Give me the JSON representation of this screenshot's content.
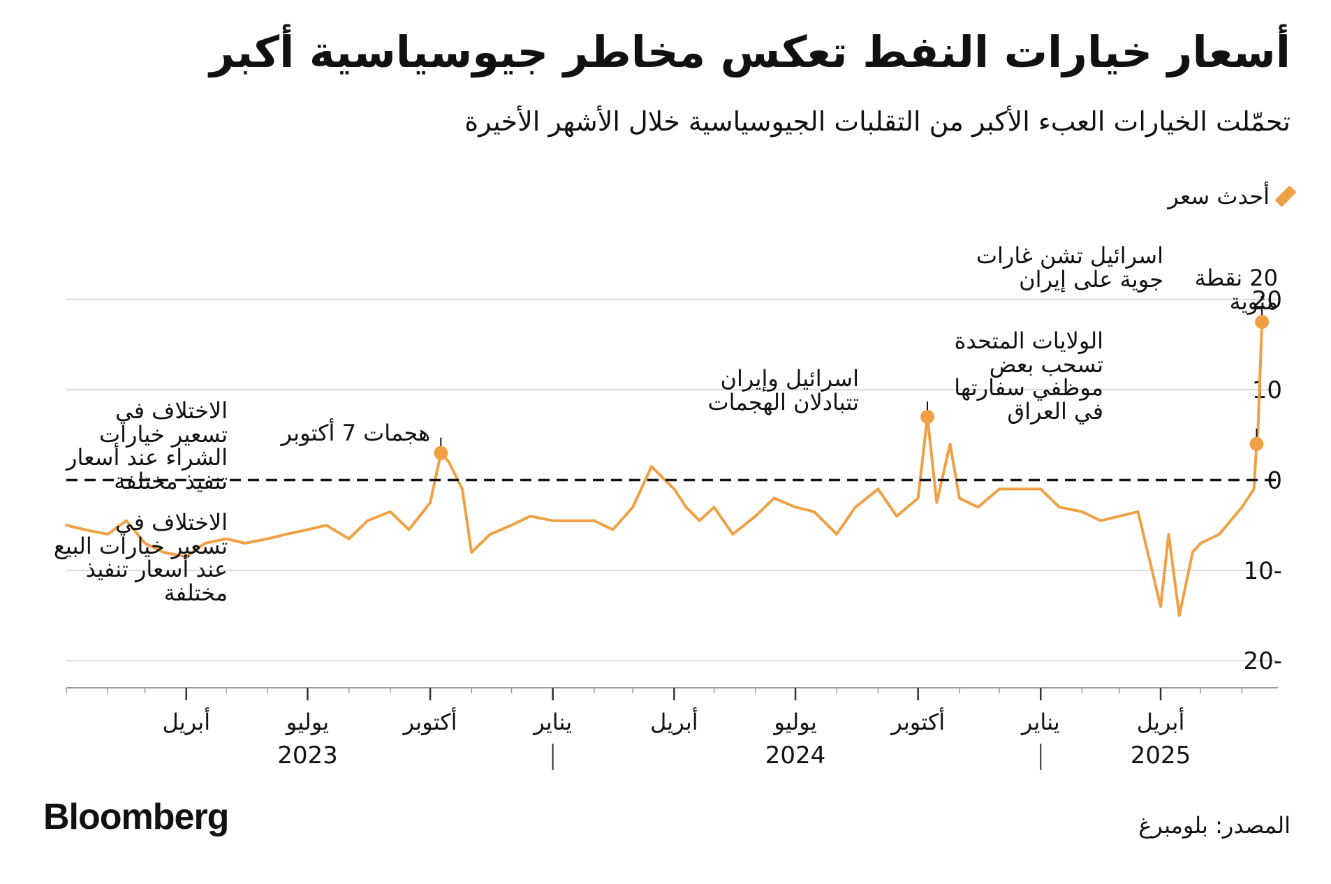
{
  "title": "أسعار خيارات النفط تعكس مخاطر جيوسياسية أكبر",
  "subtitle": "تحمّلت الخيارات العبء الأكبر من التقلبات الجيوسياسية خلال الأشهر الأخيرة",
  "legend": {
    "label": "أحدث سعر",
    "color": "#f0a044"
  },
  "source": "المصدر: بلومبرغ",
  "brand": "Bloomberg",
  "colors": {
    "line": "#f0a044",
    "grid": "#d9d9d9",
    "zero_line": "#111111",
    "axis": "#999999"
  },
  "chart_data": {
    "type": "line",
    "title": "",
    "xlabel": "",
    "ylabel": "نقطة مئوية",
    "y_unit_label": "20 نقطة\nمئوية",
    "ylim": [
      -23,
      23
    ],
    "y_ticks": [
      20,
      10,
      0,
      -10,
      -20
    ],
    "y_tick_labels": [
      "20",
      "10",
      "0",
      "10-",
      "20-"
    ],
    "x_range": [
      "2023-01-01",
      "2025-06-28"
    ],
    "x_ticks": [
      {
        "date": "2023-04-01",
        "label": "أبريل"
      },
      {
        "date": "2023-07-01",
        "label": "يوليو"
      },
      {
        "date": "2023-10-01",
        "label": "أكتوبر"
      },
      {
        "date": "2024-01-01",
        "label": "يناير"
      },
      {
        "date": "2024-04-01",
        "label": "أبريل"
      },
      {
        "date": "2024-07-01",
        "label": "يوليو"
      },
      {
        "date": "2024-10-01",
        "label": "أكتوبر"
      },
      {
        "date": "2025-01-01",
        "label": "يناير"
      },
      {
        "date": "2025-04-01",
        "label": "أبريل"
      }
    ],
    "year_labels": [
      {
        "date": "2023-07-01",
        "label": "2023"
      },
      {
        "date": "2024-07-01",
        "label": "2024"
      },
      {
        "date": "2025-04-01",
        "label": "2025"
      }
    ],
    "year_separators": [
      "2024-01-01",
      "2025-01-01"
    ],
    "grid": true,
    "zero_line_dashed": true,
    "series": [
      {
        "name": "أحدث سعر",
        "x": [
          "2023-01-01",
          "2023-01-15",
          "2023-02-01",
          "2023-02-15",
          "2023-03-01",
          "2023-03-15",
          "2023-04-01",
          "2023-04-15",
          "2023-05-01",
          "2023-05-15",
          "2023-06-01",
          "2023-06-15",
          "2023-07-01",
          "2023-07-15",
          "2023-08-01",
          "2023-08-15",
          "2023-09-01",
          "2023-09-15",
          "2023-10-01",
          "2023-10-09",
          "2023-10-15",
          "2023-10-25",
          "2023-11-01",
          "2023-11-15",
          "2023-12-01",
          "2023-12-15",
          "2024-01-01",
          "2024-01-15",
          "2024-02-01",
          "2024-02-15",
          "2024-03-01",
          "2024-03-15",
          "2024-04-01",
          "2024-04-10",
          "2024-04-20",
          "2024-05-01",
          "2024-05-15",
          "2024-06-01",
          "2024-06-15",
          "2024-07-01",
          "2024-07-15",
          "2024-08-01",
          "2024-08-15",
          "2024-09-01",
          "2024-09-15",
          "2024-10-01",
          "2024-10-08",
          "2024-10-15",
          "2024-10-25",
          "2024-11-01",
          "2024-11-15",
          "2024-12-01",
          "2024-12-15",
          "2025-01-01",
          "2025-01-15",
          "2025-02-01",
          "2025-02-15",
          "2025-03-01",
          "2025-03-15",
          "2025-04-01",
          "2025-04-07",
          "2025-04-15",
          "2025-04-25",
          "2025-05-01",
          "2025-05-15",
          "2025-06-01",
          "2025-06-10",
          "2025-06-12",
          "2025-06-13",
          "2025-06-16"
        ],
        "values": [
          -5,
          -5.5,
          -6,
          -4.5,
          -7,
          -8,
          -8.5,
          -7,
          -6.5,
          -7,
          -6.5,
          -6,
          -5.5,
          -5,
          -6.5,
          -4.5,
          -3.5,
          -5.5,
          -2.5,
          3,
          2,
          -1,
          -8,
          -6,
          -5,
          -4,
          -4.5,
          -4.5,
          -4.5,
          -5.5,
          -3,
          1.5,
          -1,
          -3,
          -4.5,
          -3,
          -6,
          -4,
          -2,
          -3,
          -3.5,
          -6,
          -3,
          -1,
          -4,
          -2,
          7,
          -2.5,
          4,
          -2,
          -3,
          -1,
          -1,
          -1,
          -3,
          -3.5,
          -4.5,
          -4,
          -3.5,
          -14,
          -6,
          -15,
          -8,
          -7,
          -6,
          -3,
          -1,
          4,
          5.5,
          17.5
        ]
      }
    ],
    "annotations": [
      {
        "text": "هجمات 7 أكتوبر",
        "date": "2023-10-09",
        "value": 3
      },
      {
        "text": "اسرائيل وإيران\nتتبادلان الهجمات",
        "date": "2024-10-08",
        "value": 7
      },
      {
        "text": "الولايات المتحدة\nتسحب بعض\nموظفي سفارتها\nفي العراق",
        "date": "2025-06-12",
        "value": 4
      },
      {
        "text": "اسرائيل تشن غارات\nجوية على إيران",
        "date": "2025-06-16",
        "value": 17.5
      }
    ],
    "zone_labels": {
      "above": "الاختلاف في\nتسعير خيارات\nالشراء عند أسعار\nتنفيذ مختلفة",
      "below": "الاختلاف في\nتسعير خيارات البيع\nعند أسعار تنفيذ\nمختلفة"
    }
  }
}
